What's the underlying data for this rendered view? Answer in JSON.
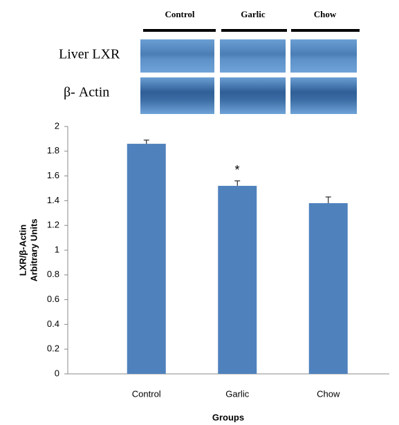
{
  "blot": {
    "lanes": [
      "Control",
      "Garlic",
      "Chow"
    ],
    "rows": [
      "Liver LXR",
      "β- Actin"
    ]
  },
  "chart_data": {
    "type": "bar",
    "categories": [
      "Control",
      "Garlic",
      "Chow"
    ],
    "values": [
      1.86,
      1.52,
      1.38
    ],
    "errors": [
      0.03,
      0.04,
      0.05
    ],
    "color": "#4f81bd",
    "ylim": [
      0,
      2
    ],
    "yticks": [
      0,
      0.2,
      0.4,
      0.6,
      0.8,
      1,
      1.2,
      1.4,
      1.6,
      1.8,
      2
    ],
    "ylabel": [
      "LXR/β-Actin",
      "Arbitrary Units"
    ],
    "xlabel": "Groups",
    "annotation": "*"
  }
}
